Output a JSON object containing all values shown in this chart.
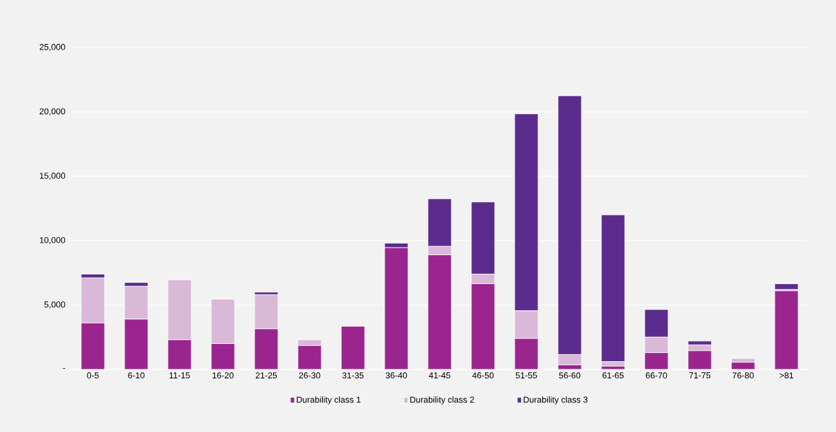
{
  "chart_data": {
    "type": "bar",
    "stacked": true,
    "categories": [
      "0-5",
      "6-10",
      "11-15",
      "16-20",
      "21-25",
      "26-30",
      "31-35",
      "36-40",
      "41-45",
      "46-50",
      "51-55",
      "56-60",
      "61-65",
      "66-70",
      "71-75",
      "76-80",
      ">81"
    ],
    "series": [
      {
        "name": "Durability class 1",
        "color": "#9a258f",
        "values": [
          3600,
          3900,
          2300,
          2000,
          3150,
          1850,
          3350,
          9450,
          8900,
          6650,
          2400,
          350,
          250,
          1300,
          1450,
          550,
          6100
        ]
      },
      {
        "name": "Durability class 2",
        "color": "#d9b8d8",
        "values": [
          3500,
          2550,
          4650,
          3450,
          2650,
          450,
          null,
          null,
          650,
          750,
          2150,
          800,
          350,
          1200,
          450,
          300,
          100
        ]
      },
      {
        "name": "Durability class 3",
        "color": "#5b2c8e",
        "values": [
          300,
          300,
          null,
          null,
          200,
          null,
          null,
          350,
          3700,
          5600,
          15300,
          20100,
          11400,
          2150,
          300,
          null,
          450
        ]
      }
    ],
    "ylim": [
      0,
      25000
    ],
    "yticks": [
      {
        "value": 0,
        "label": "-"
      },
      {
        "value": 5000,
        "label": "5,000"
      },
      {
        "value": 10000,
        "label": "10,000"
      },
      {
        "value": 15000,
        "label": "15,000"
      },
      {
        "value": 20000,
        "label": "20,000"
      },
      {
        "value": 25000,
        "label": "25,000"
      }
    ],
    "grid": "y",
    "legend": "bottom"
  }
}
